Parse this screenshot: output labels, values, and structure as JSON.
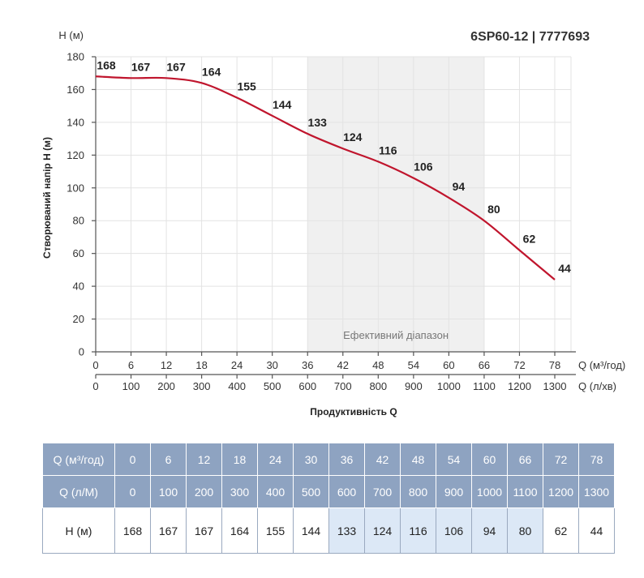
{
  "title": "6SP60-12 | 7777693",
  "y_unit_label": "H (м)",
  "x1_unit_label": "Q (м³/год)",
  "x2_unit_label": "Q (л/хв)",
  "ylabel": "Створюваний напір H (м)",
  "xlabel": "Продуктивність Q",
  "band_label": "Ефективний діапазон",
  "chart_data": {
    "type": "line",
    "title": "6SP60-12 | 7777693",
    "xlabel": "Продуктивність Q",
    "ylabel": "Створюваний напір H (м)",
    "x": [
      0,
      6,
      12,
      18,
      24,
      30,
      36,
      42,
      48,
      54,
      60,
      66,
      72,
      78
    ],
    "x_secondary": [
      0,
      100,
      200,
      300,
      400,
      500,
      600,
      700,
      800,
      900,
      1000,
      1100,
      1200,
      1300
    ],
    "series": [
      {
        "values": [
          168,
          167,
          167,
          164,
          155,
          144,
          133,
          124,
          116,
          106,
          94,
          80,
          62,
          44
        ],
        "color": "#c0152d"
      }
    ],
    "xlim": [
      0,
      78
    ],
    "ylim": [
      0,
      180
    ],
    "yticks": [
      0,
      20,
      40,
      60,
      80,
      100,
      120,
      140,
      160,
      180
    ],
    "efficient_range": [
      36,
      66
    ],
    "grid": true
  },
  "table": {
    "rows": [
      {
        "label": "Q (м³/год)",
        "values": [
          "0",
          "6",
          "12",
          "18",
          "24",
          "30",
          "36",
          "42",
          "48",
          "54",
          "60",
          "66",
          "72",
          "78"
        ]
      },
      {
        "label": "Q (л/М)",
        "values": [
          "0",
          "100",
          "200",
          "300",
          "400",
          "500",
          "600",
          "700",
          "800",
          "900",
          "1000",
          "1100",
          "1200",
          "1300"
        ]
      },
      {
        "label": "H (м)",
        "values": [
          "168",
          "167",
          "167",
          "164",
          "155",
          "144",
          "133",
          "124",
          "116",
          "106",
          "94",
          "80",
          "62",
          "44"
        ]
      }
    ],
    "efficient_cols": [
      6,
      7,
      8,
      9,
      10,
      11
    ]
  }
}
